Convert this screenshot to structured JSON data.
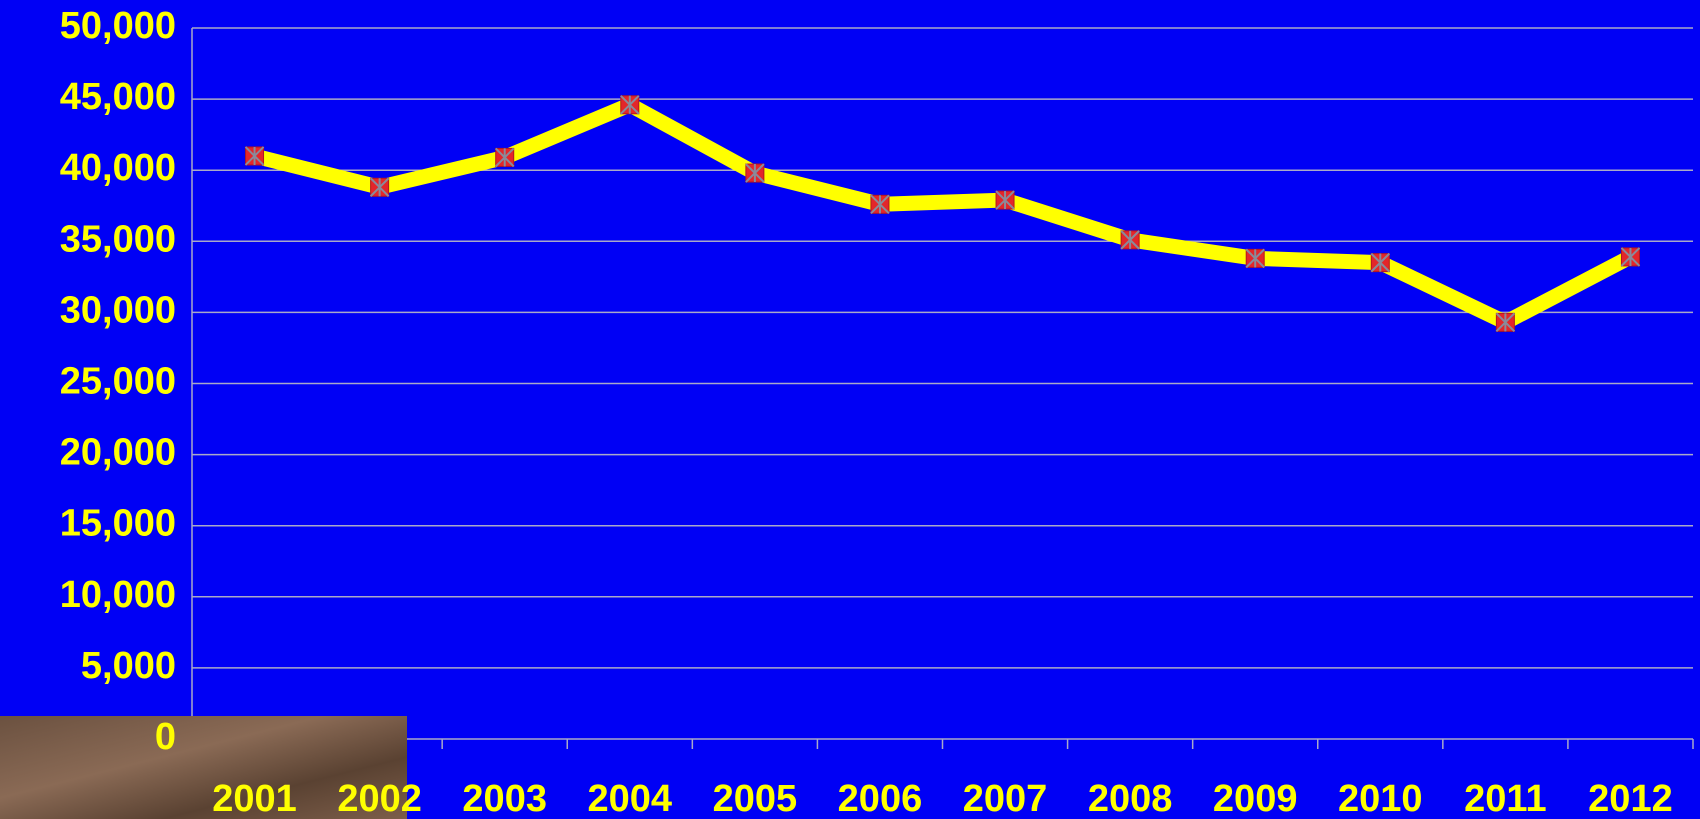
{
  "chart_data": {
    "type": "line",
    "categories": [
      "2001",
      "2002",
      "2003",
      "2004",
      "2005",
      "2006",
      "2007",
      "2008",
      "2009",
      "2010",
      "2011",
      "2012"
    ],
    "series": [
      {
        "color": "#ffff00",
        "marker_color": "#e3262a",
        "values": [
          41000,
          38800,
          40900,
          44600,
          39800,
          37600,
          37900,
          35100,
          33800,
          33500,
          29300,
          33900
        ]
      }
    ],
    "ylim": [
      0,
      50000
    ],
    "yticks": [
      0,
      {
        "value": 5000,
        "label": "5,000"
      },
      {
        "value": 10000,
        "label": "10,000"
      },
      {
        "value": 15000,
        "label": "15,000"
      },
      {
        "value": 20000,
        "label": "20,000"
      },
      {
        "value": 25000,
        "label": "25,000"
      },
      {
        "value": 30000,
        "label": "30,000"
      },
      {
        "value": 35000,
        "label": "35,000"
      },
      {
        "value": 40000,
        "label": "40,000"
      },
      {
        "value": 45000,
        "label": "45,000"
      },
      {
        "value": 50000,
        "label": "50,000"
      }
    ],
    "grid": true
  }
}
